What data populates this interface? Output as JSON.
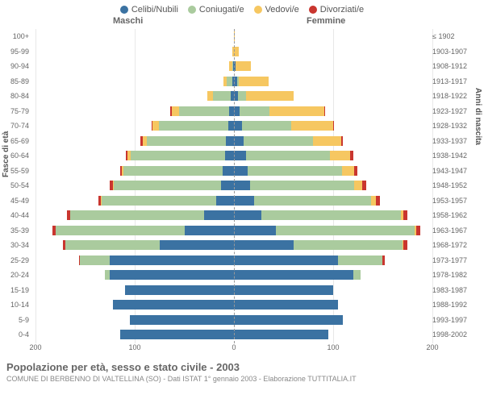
{
  "chart": {
    "type": "population-pyramid",
    "legend": [
      {
        "label": "Celibi/Nubili",
        "color": "#3b72a2"
      },
      {
        "label": "Coniugati/e",
        "color": "#aacb9e"
      },
      {
        "label": "Vedovi/e",
        "color": "#f6c761"
      },
      {
        "label": "Divorziati/e",
        "color": "#c9362f"
      }
    ],
    "header_left": "Maschi",
    "header_right": "Femmine",
    "y_left_title": "Fasce di età",
    "y_right_title": "Anni di nascita",
    "x_axis": {
      "ticks": [
        200,
        100,
        0,
        100,
        200
      ],
      "max": 200
    },
    "colors": {
      "celibi": "#3b72a2",
      "coniugati": "#aacb9e",
      "vedovi": "#f6c761",
      "divorziati": "#c9362f",
      "grid": "#e8e8e8",
      "center": "#999999"
    },
    "rows": [
      {
        "age": "100+",
        "year": "≤ 1902",
        "m": [
          0,
          0,
          0,
          0
        ],
        "f": [
          0,
          0,
          1,
          0
        ]
      },
      {
        "age": "95-99",
        "year": "1903-1907",
        "m": [
          0,
          0,
          2,
          0
        ],
        "f": [
          0,
          0,
          5,
          0
        ]
      },
      {
        "age": "90-94",
        "year": "1908-1912",
        "m": [
          1,
          1,
          3,
          0
        ],
        "f": [
          2,
          0,
          15,
          0
        ]
      },
      {
        "age": "85-89",
        "year": "1913-1917",
        "m": [
          2,
          5,
          4,
          0
        ],
        "f": [
          3,
          2,
          30,
          0
        ]
      },
      {
        "age": "80-84",
        "year": "1918-1922",
        "m": [
          3,
          18,
          6,
          0
        ],
        "f": [
          4,
          8,
          48,
          0
        ]
      },
      {
        "age": "75-79",
        "year": "1923-1927",
        "m": [
          5,
          50,
          8,
          1
        ],
        "f": [
          6,
          30,
          55,
          1
        ]
      },
      {
        "age": "70-74",
        "year": "1928-1932",
        "m": [
          6,
          70,
          6,
          1
        ],
        "f": [
          8,
          50,
          42,
          1
        ]
      },
      {
        "age": "65-69",
        "year": "1933-1937",
        "m": [
          8,
          80,
          4,
          2
        ],
        "f": [
          10,
          70,
          28,
          2
        ]
      },
      {
        "age": "60-64",
        "year": "1938-1942",
        "m": [
          9,
          95,
          3,
          2
        ],
        "f": [
          12,
          85,
          20,
          3
        ]
      },
      {
        "age": "55-59",
        "year": "1943-1947",
        "m": [
          11,
          100,
          2,
          2
        ],
        "f": [
          14,
          95,
          12,
          3
        ]
      },
      {
        "age": "50-54",
        "year": "1948-1952",
        "m": [
          13,
          108,
          1,
          3
        ],
        "f": [
          16,
          105,
          8,
          4
        ]
      },
      {
        "age": "45-49",
        "year": "1953-1957",
        "m": [
          18,
          115,
          1,
          3
        ],
        "f": [
          20,
          118,
          5,
          4
        ]
      },
      {
        "age": "40-44",
        "year": "1958-1962",
        "m": [
          30,
          135,
          0,
          3
        ],
        "f": [
          28,
          140,
          3,
          4
        ]
      },
      {
        "age": "35-39",
        "year": "1963-1967",
        "m": [
          50,
          130,
          0,
          3
        ],
        "f": [
          42,
          140,
          2,
          4
        ]
      },
      {
        "age": "30-34",
        "year": "1968-1972",
        "m": [
          75,
          95,
          0,
          2
        ],
        "f": [
          60,
          110,
          1,
          4
        ]
      },
      {
        "age": "25-29",
        "year": "1973-1977",
        "m": [
          125,
          30,
          0,
          1
        ],
        "f": [
          105,
          45,
          0,
          2
        ]
      },
      {
        "age": "20-24",
        "year": "1978-1982",
        "m": [
          125,
          5,
          0,
          0
        ],
        "f": [
          120,
          8,
          0,
          0
        ]
      },
      {
        "age": "15-19",
        "year": "1983-1987",
        "m": [
          110,
          0,
          0,
          0
        ],
        "f": [
          100,
          0,
          0,
          0
        ]
      },
      {
        "age": "10-14",
        "year": "1988-1992",
        "m": [
          122,
          0,
          0,
          0
        ],
        "f": [
          105,
          0,
          0,
          0
        ]
      },
      {
        "age": "5-9",
        "year": "1993-1997",
        "m": [
          105,
          0,
          0,
          0
        ],
        "f": [
          110,
          0,
          0,
          0
        ]
      },
      {
        "age": "0-4",
        "year": "1998-2002",
        "m": [
          115,
          0,
          0,
          0
        ],
        "f": [
          95,
          0,
          0,
          0
        ]
      }
    ],
    "footer_title": "Popolazione per età, sesso e stato civile - 2003",
    "footer_sub": "COMUNE DI BERBENNO DI VALTELLINA (SO) - Dati ISTAT 1° gennaio 2003 - Elaborazione TUTTITALIA.IT"
  }
}
